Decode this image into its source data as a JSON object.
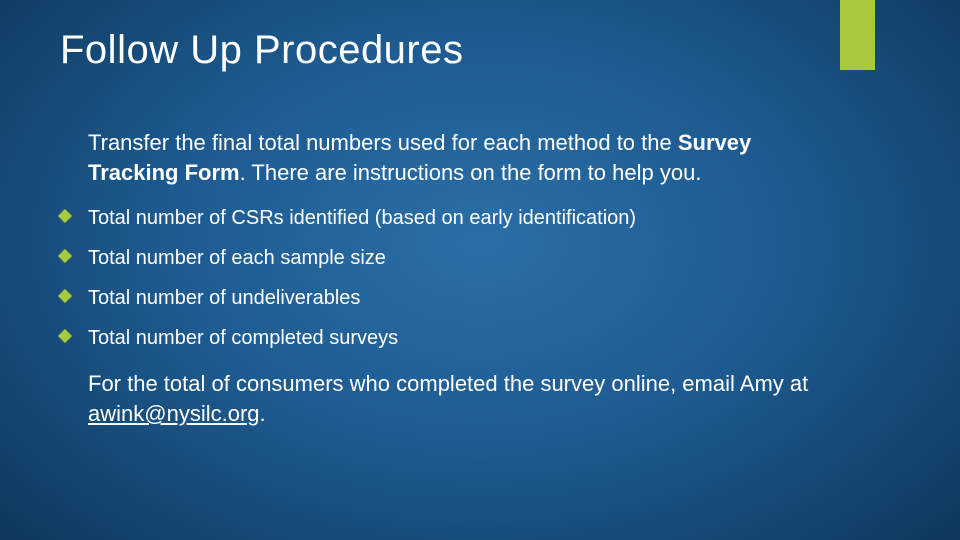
{
  "colors": {
    "accent": "#a8c93e",
    "text": "#ffffff",
    "bg_center": "#2a6fa8",
    "bg_edge": "#082540"
  },
  "typography": {
    "title_fontsize": 40,
    "body_fontsize": 22,
    "bullet_fontsize": 20,
    "font_family": "Arial"
  },
  "slide": {
    "title": "Follow Up Procedures",
    "intro_pre": "Transfer the final total numbers used for each method to the ",
    "intro_bold": "Survey Tracking Form",
    "intro_post": ".  There are instructions on the form to help you.",
    "bullets": [
      "Total number of CSRs identified (based on early identification)",
      "Total number of each sample size",
      "Total number of undeliverables",
      "Total number of completed surveys"
    ],
    "outro_pre": "For the total of consumers who completed the survey online, email Amy at ",
    "outro_email": "awink@nysilc.org",
    "outro_post": "."
  }
}
